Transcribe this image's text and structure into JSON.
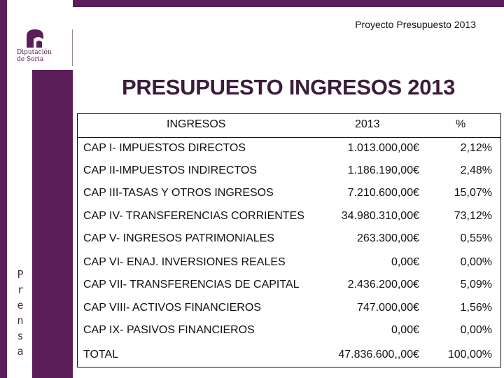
{
  "header": {
    "title": "Proyecto Presupuesto 2013"
  },
  "logo": {
    "line1": "Diputación",
    "line2": "de Soria",
    "icon": "diputacion-logo-icon"
  },
  "side_label": {
    "letters": [
      "P",
      "r",
      "e",
      "n",
      "s",
      "a"
    ]
  },
  "main": {
    "title": "PRESUPUESTO INGRESOS 2013"
  },
  "table": {
    "headers": [
      "INGRESOS",
      "2013",
      "%"
    ],
    "rows": [
      {
        "name": "CAP I- IMPUESTOS DIRECTOS",
        "amount": "1.013.000,00€",
        "pct": "2,12%"
      },
      {
        "name": "CAP II-IMPUESTOS INDIRECTOS",
        "amount": "1.186.190,00€",
        "pct": "2,48%"
      },
      {
        "name": "CAP III-TASAS Y OTROS INGRESOS",
        "amount": "7.210.600,00€",
        "pct": "15,07%"
      },
      {
        "name": "CAP IV- TRANSFERENCIAS CORRIENTES",
        "amount": "34.980.310,00€",
        "pct": "73,12%"
      },
      {
        "name": "CAP V- INGRESOS PATRIMONIALES",
        "amount": "263.300,00€",
        "pct": "0,55%"
      },
      {
        "name": "CAP VI- ENAJ. INVERSIONES REALES",
        "amount": "0,00€",
        "pct": "0,00%"
      },
      {
        "name": "CAP VII- TRANSFERENCIAS DE CAPITAL",
        "amount": "2.436.200,00€",
        "pct": "5,09%"
      },
      {
        "name": "CAP VIII- ACTIVOS FINANCIEROS",
        "amount": "747.000,00€",
        "pct": "1,56%"
      },
      {
        "name": "CAP IX- PASIVOS FINANCIEROS",
        "amount": "0,00€",
        "pct": "0,00%"
      },
      {
        "name": "TOTAL",
        "amount": "47.836.600,,00€",
        "pct": "100,00%"
      }
    ]
  },
  "colors": {
    "brand_purple": "#5c1e58",
    "title_color": "#3a1d3a"
  }
}
